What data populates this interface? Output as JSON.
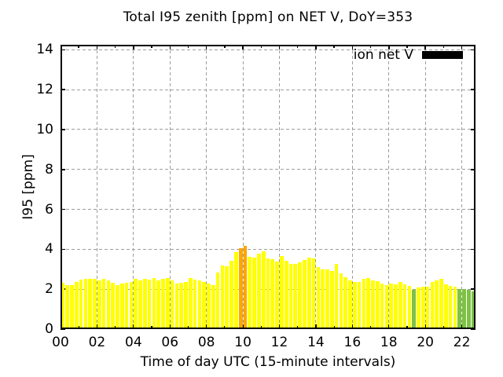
{
  "title": "Total I95 zenith [ppm] on NET V, DoY=353",
  "legend": {
    "label": "ion net V",
    "swatch_color": "#000000"
  },
  "y_axis": {
    "label": "I95 [ppm]",
    "tick_labels": [
      "0",
      "2",
      "4",
      "6",
      "8",
      "10",
      "12",
      "14"
    ],
    "tick_values": [
      0,
      2,
      4,
      6,
      8,
      10,
      12,
      14
    ],
    "range": [
      0,
      14.25
    ]
  },
  "x_axis": {
    "label": "Time of day UTC (15-minute intervals)",
    "tick_labels": [
      "00",
      "02",
      "04",
      "06",
      "08",
      "10",
      "12",
      "14",
      "16",
      "18",
      "20",
      "22"
    ],
    "tick_hours": [
      0,
      2,
      4,
      6,
      8,
      10,
      12,
      14,
      16,
      18,
      20,
      22
    ],
    "minor_tick_every_hours": 1,
    "range_hours": [
      0,
      22.75
    ]
  },
  "colors": {
    "background": "#ffffff",
    "border": "#000000",
    "grid": "#9e9e9e",
    "bar_normal": "#ffff00",
    "bar_high": "#ffa500",
    "bar_low": "#7dc243",
    "legend_swatch": "#000000"
  },
  "chart_data": {
    "type": "bar",
    "title": "Total I95 zenith [ppm] on NET V, DoY=353",
    "xlabel": "Time of day UTC (15-minute intervals)",
    "ylabel": "I95 [ppm]",
    "xlim_hours": [
      0,
      22.75
    ],
    "ylim": [
      0,
      14.25
    ],
    "grid": true,
    "legend_position": "top-right",
    "legend_entry": "ion net V",
    "interval_minutes": 15,
    "bar_width_hours": 0.2,
    "level_colors": {
      "n": "#ffff00",
      "h": "#ffa500",
      "l": "#7dc243"
    },
    "times": [
      "00:00",
      "00:15",
      "00:30",
      "00:45",
      "01:00",
      "01:15",
      "01:30",
      "01:45",
      "02:00",
      "02:15",
      "02:30",
      "02:45",
      "03:00",
      "03:15",
      "03:30",
      "03:45",
      "04:00",
      "04:15",
      "04:30",
      "04:45",
      "05:00",
      "05:15",
      "05:30",
      "05:45",
      "06:00",
      "06:15",
      "06:30",
      "06:45",
      "07:00",
      "07:15",
      "07:30",
      "07:45",
      "08:00",
      "08:15",
      "08:30",
      "08:45",
      "09:00",
      "09:15",
      "09:30",
      "09:45",
      "10:00",
      "10:15",
      "10:30",
      "10:45",
      "11:00",
      "11:15",
      "11:30",
      "11:45",
      "12:00",
      "12:15",
      "12:30",
      "12:45",
      "13:00",
      "13:15",
      "13:30",
      "13:45",
      "14:00",
      "14:15",
      "14:30",
      "14:45",
      "15:00",
      "15:15",
      "15:30",
      "15:45",
      "16:00",
      "16:15",
      "16:30",
      "16:45",
      "17:00",
      "17:15",
      "17:30",
      "17:45",
      "18:00",
      "18:15",
      "18:30",
      "18:45",
      "19:00",
      "19:15",
      "19:30",
      "19:45",
      "20:00",
      "20:15",
      "20:30",
      "20:45",
      "21:00",
      "21:15",
      "21:30",
      "21:45",
      "22:00",
      "22:15",
      "22:30"
    ],
    "values": [
      2.31,
      2.22,
      2.22,
      2.35,
      2.48,
      2.52,
      2.52,
      2.52,
      2.44,
      2.52,
      2.44,
      2.31,
      2.22,
      2.28,
      2.32,
      2.35,
      2.52,
      2.45,
      2.52,
      2.48,
      2.54,
      2.45,
      2.52,
      2.55,
      2.45,
      2.3,
      2.33,
      2.36,
      2.54,
      2.48,
      2.45,
      2.35,
      2.28,
      2.22,
      2.85,
      3.2,
      3.14,
      3.43,
      3.85,
      4.06,
      4.17,
      3.62,
      3.58,
      3.78,
      3.9,
      3.55,
      3.5,
      3.37,
      3.66,
      3.44,
      3.28,
      3.28,
      3.36,
      3.46,
      3.59,
      3.55,
      3.11,
      3.01,
      2.98,
      2.9,
      3.26,
      2.8,
      2.58,
      2.44,
      2.38,
      2.37,
      2.52,
      2.57,
      2.45,
      2.42,
      2.28,
      2.22,
      2.27,
      2.23,
      2.35,
      2.26,
      2.15,
      1.98,
      2.09,
      2.12,
      2.12,
      2.37,
      2.45,
      2.51,
      2.24,
      2.15,
      2.13,
      2.0,
      1.99,
      1.97,
      1.9
    ],
    "levels": [
      "n",
      "n",
      "n",
      "n",
      "n",
      "n",
      "n",
      "n",
      "n",
      "n",
      "n",
      "n",
      "n",
      "n",
      "n",
      "n",
      "n",
      "n",
      "n",
      "n",
      "n",
      "n",
      "n",
      "n",
      "n",
      "n",
      "n",
      "n",
      "n",
      "n",
      "n",
      "n",
      "n",
      "n",
      "n",
      "n",
      "n",
      "n",
      "n",
      "h",
      "h",
      "n",
      "n",
      "n",
      "n",
      "n",
      "n",
      "n",
      "n",
      "n",
      "n",
      "n",
      "n",
      "n",
      "n",
      "n",
      "n",
      "n",
      "n",
      "n",
      "n",
      "n",
      "n",
      "n",
      "n",
      "n",
      "n",
      "n",
      "n",
      "n",
      "n",
      "n",
      "n",
      "n",
      "n",
      "n",
      "n",
      "l",
      "n",
      "n",
      "n",
      "n",
      "n",
      "n",
      "n",
      "n",
      "n",
      "l",
      "l",
      "l",
      "l"
    ]
  }
}
